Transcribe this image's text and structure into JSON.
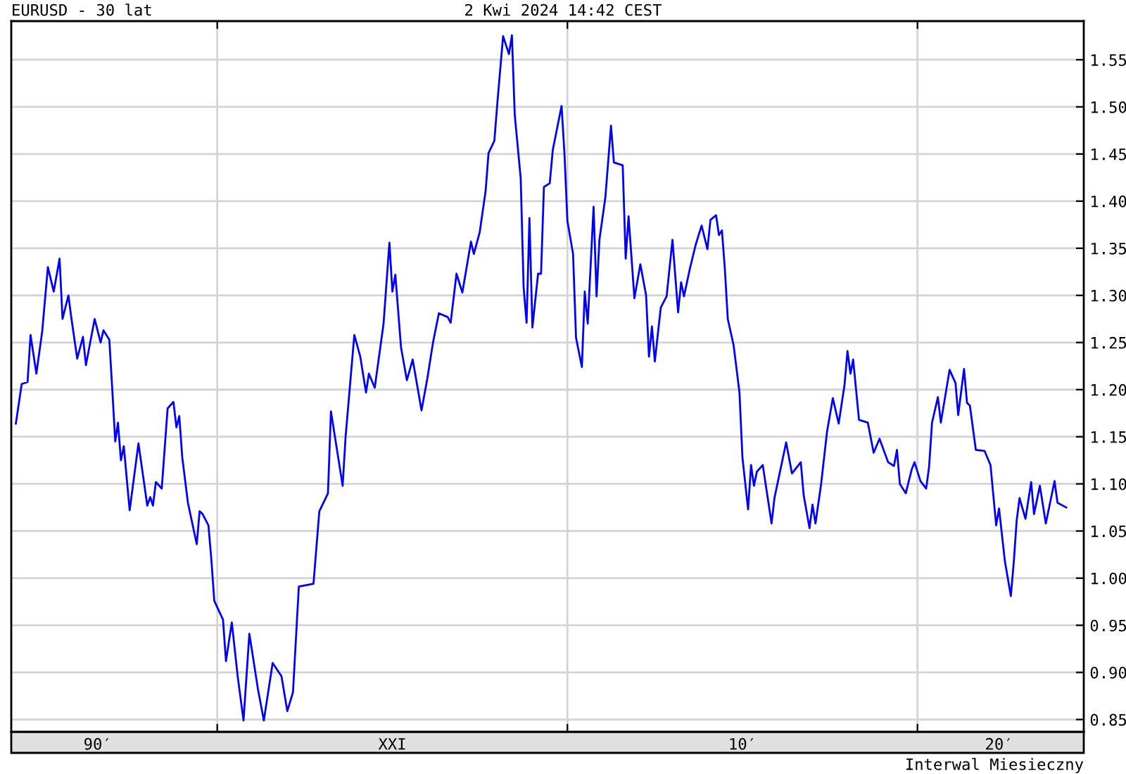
{
  "chart_data": {
    "type": "line",
    "title": "EURUSD - 30 lat",
    "subtitle": "2 Kwi 2024 14:42 CEST",
    "annotations": [
      "Interwal Miesieczny"
    ],
    "xlim": [
      "1994-02-12",
      "2024-10-01"
    ],
    "ylim": [
      0.837,
      1.591
    ],
    "xticks": [
      {
        "value": "1996-08",
        "label": "90′"
      },
      {
        "value": "2000-01",
        "label": null
      },
      {
        "value": "2005-01",
        "label": "XXI"
      },
      {
        "value": "2010-01",
        "label": null
      },
      {
        "value": "2015-01",
        "label": "10′"
      },
      {
        "value": "2020-01",
        "label": null
      },
      {
        "value": "2022-05",
        "label": "20′"
      }
    ],
    "yticks": [
      {
        "value": 0.85,
        "label": "0.85"
      },
      {
        "value": 0.9,
        "label": "0.90"
      },
      {
        "value": 0.95,
        "label": "0.95"
      },
      {
        "value": 1.0,
        "label": "1.00"
      },
      {
        "value": 1.05,
        "label": "1.05"
      },
      {
        "value": 1.1,
        "label": "1.10"
      },
      {
        "value": 1.15,
        "label": "1.15"
      },
      {
        "value": 1.2,
        "label": "1.20"
      },
      {
        "value": 1.25,
        "label": "1.25"
      },
      {
        "value": 1.3,
        "label": "1.30"
      },
      {
        "value": 1.35,
        "label": "1.35"
      },
      {
        "value": 1.4,
        "label": "1.40"
      },
      {
        "value": 1.45,
        "label": "1.45"
      },
      {
        "value": 1.5,
        "label": "1.50"
      },
      {
        "value": 1.55,
        "label": "1.55"
      }
    ],
    "grid": true,
    "x": [
      "1994-04",
      "1994-06",
      "1994-08",
      "1994-09",
      "1994-11",
      "1995-01",
      "1995-03",
      "1995-05",
      "1995-07",
      "1995-08",
      "1995-10",
      "1995-11",
      "1996-01",
      "1996-03",
      "1996-04",
      "1996-07",
      "1996-09",
      "1996-10",
      "1996-12",
      "1997-01",
      "1997-02",
      "1997-03",
      "1997-04",
      "1997-05",
      "1997-07",
      "1997-10",
      "1998-01",
      "1998-02",
      "1998-03",
      "1998-04",
      "1998-06",
      "1998-08",
      "1998-10",
      "1998-11",
      "1998-12",
      "1999-01",
      "1999-03",
      "1999-06",
      "1999-07",
      "1999-08",
      "1999-10",
      "1999-11",
      "1999-12",
      "2000-03",
      "2000-04",
      "2000-06",
      "2000-08",
      "2000-10",
      "2000-12",
      "2001-03",
      "2001-05",
      "2001-08",
      "2001-11",
      "2002-01",
      "2002-03",
      "2002-05",
      "2002-10",
      "2002-12",
      "2003-03",
      "2003-04",
      "2003-08",
      "2003-09",
      "2003-12",
      "2004-02",
      "2004-04",
      "2004-05",
      "2004-07",
      "2004-10",
      "2004-12",
      "2005-01",
      "2005-02",
      "2005-04",
      "2005-06",
      "2005-08",
      "2005-11",
      "2006-01",
      "2006-03",
      "2006-05",
      "2006-08",
      "2006-09",
      "2006-11",
      "2007-01",
      "2007-04",
      "2007-05",
      "2007-07",
      "2007-09",
      "2007-10",
      "2007-12",
      "2008-01",
      "2008-03",
      "2008-05",
      "2008-06",
      "2008-07",
      "2008-09",
      "2008-10",
      "2008-11",
      "2008-12",
      "2009-01",
      "2009-03",
      "2009-04",
      "2009-05",
      "2009-07",
      "2009-08",
      "2009-11",
      "2009-12",
      "2010-01",
      "2010-03",
      "2010-04",
      "2010-06",
      "2010-07",
      "2010-08",
      "2010-10",
      "2010-11",
      "2010-12",
      "2011-02",
      "2011-04",
      "2011-05",
      "2011-08",
      "2011-09",
      "2011-10",
      "2011-12",
      "2012-02",
      "2012-04",
      "2012-05",
      "2012-06",
      "2012-07",
      "2012-09",
      "2012-11",
      "2013-01",
      "2013-03",
      "2013-04",
      "2013-05",
      "2013-07",
      "2013-09",
      "2013-11",
      "2014-01",
      "2014-02",
      "2014-04",
      "2014-05",
      "2014-06",
      "2014-07",
      "2014-08",
      "2014-10",
      "2014-12",
      "2015-01",
      "2015-03",
      "2015-04",
      "2015-05",
      "2015-06",
      "2015-08",
      "2015-11",
      "2015-12",
      "2016-02",
      "2016-04",
      "2016-06",
      "2016-09",
      "2016-10",
      "2016-12",
      "2017-01",
      "2017-02",
      "2017-04",
      "2017-06",
      "2017-08",
      "2017-10",
      "2017-12",
      "2018-01",
      "2018-02",
      "2018-03",
      "2018-05",
      "2018-08",
      "2018-10",
      "2018-12",
      "2019-03",
      "2019-05",
      "2019-06",
      "2019-07",
      "2019-09",
      "2019-11",
      "2019-12",
      "2020-02",
      "2020-04",
      "2020-05",
      "2020-06",
      "2020-08",
      "2020-09",
      "2020-12",
      "2021-02",
      "2021-03",
      "2021-05",
      "2021-06",
      "2021-07",
      "2021-09",
      "2021-12",
      "2022-02",
      "2022-04",
      "2022-05",
      "2022-07",
      "2022-09",
      "2022-10",
      "2022-11",
      "2022-12",
      "2023-02",
      "2023-04",
      "2023-05",
      "2023-07",
      "2023-09",
      "2023-12",
      "2024-01",
      "2024-04"
    ],
    "series": [
      {
        "color": "#0000ff",
        "values": [
          1.164,
          1.206,
          1.208,
          1.258,
          1.217,
          1.262,
          1.33,
          1.304,
          1.339,
          1.275,
          1.3,
          1.276,
          1.233,
          1.256,
          1.226,
          1.275,
          1.25,
          1.263,
          1.253,
          1.2,
          1.145,
          1.165,
          1.125,
          1.14,
          1.072,
          1.143,
          1.077,
          1.086,
          1.077,
          1.102,
          1.095,
          1.18,
          1.187,
          1.16,
          1.172,
          1.128,
          1.08,
          1.036,
          1.071,
          1.068,
          1.056,
          1.019,
          0.976,
          0.956,
          0.912,
          0.953,
          0.896,
          0.849,
          0.941,
          0.882,
          0.849,
          0.91,
          0.896,
          0.859,
          0.879,
          0.991,
          0.994,
          1.071,
          1.09,
          1.177,
          1.098,
          1.15,
          1.258,
          1.235,
          1.197,
          1.217,
          1.202,
          1.27,
          1.356,
          1.304,
          1.322,
          1.245,
          1.21,
          1.232,
          1.178,
          1.212,
          1.25,
          1.281,
          1.277,
          1.271,
          1.323,
          1.303,
          1.357,
          1.344,
          1.367,
          1.411,
          1.451,
          1.464,
          1.504,
          1.575,
          1.556,
          1.576,
          1.491,
          1.424,
          1.309,
          1.271,
          1.382,
          1.266,
          1.323,
          1.323,
          1.415,
          1.419,
          1.454,
          1.501,
          1.451,
          1.379,
          1.344,
          1.255,
          1.224,
          1.304,
          1.27,
          1.394,
          1.299,
          1.359,
          1.404,
          1.48,
          1.441,
          1.438,
          1.339,
          1.384,
          1.297,
          1.333,
          1.3,
          1.235,
          1.267,
          1.23,
          1.287,
          1.299,
          1.359,
          1.282,
          1.314,
          1.299,
          1.328,
          1.354,
          1.374,
          1.349,
          1.38,
          1.385,
          1.364,
          1.369,
          1.329,
          1.275,
          1.247,
          1.197,
          1.128,
          1.073,
          1.12,
          1.098,
          1.113,
          1.12,
          1.058,
          1.085,
          1.115,
          1.144,
          1.111,
          1.123,
          1.088,
          1.053,
          1.078,
          1.058,
          1.1,
          1.155,
          1.191,
          1.164,
          1.205,
          1.241,
          1.217,
          1.232,
          1.168,
          1.165,
          1.133,
          1.148,
          1.123,
          1.119,
          1.136,
          1.1,
          1.09,
          1.115,
          1.123,
          1.103,
          1.095,
          1.118,
          1.165,
          1.192,
          1.165,
          1.221,
          1.207,
          1.173,
          1.222,
          1.186,
          1.183,
          1.136,
          1.135,
          1.12,
          1.056,
          1.074,
          1.018,
          0.981,
          1.016,
          1.061,
          1.085,
          1.063,
          1.102,
          1.068,
          1.098,
          1.058,
          1.103,
          1.08,
          1.075
        ]
      }
    ]
  }
}
